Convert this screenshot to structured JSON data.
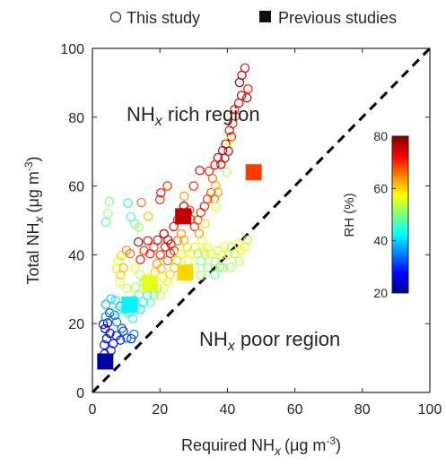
{
  "chart_data": {
    "type": "scatter",
    "xlabel": "Required NH",
    "xlabel_sub": "x",
    "xlabel_unit": "(μg m",
    "xlabel_exp": "-3",
    "xlabel_close": ")",
    "ylabel": "Total NH",
    "ylabel_sub": "x",
    "ylabel_unit": "(μg m",
    "ylabel_exp": "-3",
    "ylabel_close": ")",
    "xlim": [
      0,
      100
    ],
    "ylim": [
      0,
      100
    ],
    "xticks": [
      0,
      20,
      40,
      60,
      80,
      100
    ],
    "yticks": [
      0,
      20,
      40,
      60,
      80,
      100
    ],
    "grid": false,
    "legend_position": "top",
    "legend": [
      {
        "label": "This study",
        "marker": "open-circle"
      },
      {
        "label": "Previous studies",
        "marker": "filled-square"
      }
    ],
    "annotations": {
      "rich_main": "NH",
      "rich_sub": "x",
      "rich_rest": " rich region",
      "poor_main": "NH",
      "poor_sub": "x",
      "poor_rest": " poor region"
    },
    "reference_line": {
      "style": "dashed",
      "from": [
        0,
        0
      ],
      "to": [
        100,
        100
      ]
    },
    "colorbar": {
      "label": "RH (%)",
      "range": [
        20,
        80
      ],
      "ticks": [
        20,
        40,
        60,
        80
      ],
      "colormap": "jet"
    },
    "series": [
      {
        "name": "This study",
        "marker": "open-circle",
        "points": [
          [
            3.2,
            19.8,
            28
          ],
          [
            4.5,
            20.2,
            26
          ],
          [
            3.8,
            18.5,
            24
          ],
          [
            5.2,
            17.2,
            27
          ],
          [
            4.2,
            15.6,
            25
          ],
          [
            3.5,
            13.8,
            29
          ],
          [
            5.5,
            12.2,
            30
          ],
          [
            3.6,
            11.2,
            22
          ],
          [
            4.1,
            9.6,
            21
          ],
          [
            6.2,
            14.2,
            27
          ],
          [
            7.1,
            16.5,
            29
          ],
          [
            8.3,
            15.2,
            28
          ],
          [
            9.2,
            17.8,
            31
          ],
          [
            10.2,
            15.8,
            33
          ],
          [
            11.5,
            15.6,
            30
          ],
          [
            12.3,
            16.9,
            34
          ],
          [
            8.7,
            18.6,
            32
          ],
          [
            7.2,
            20.5,
            35
          ],
          [
            6.6,
            22.4,
            34
          ],
          [
            5.1,
            23.1,
            30
          ],
          [
            3.9,
            22.0,
            36
          ],
          [
            4.0,
            25.6,
            38
          ],
          [
            5.5,
            27.2,
            40
          ],
          [
            6.9,
            26.8,
            42
          ],
          [
            8.2,
            25.0,
            39
          ],
          [
            7.4,
            23.8,
            44
          ],
          [
            9.8,
            24.1,
            46
          ],
          [
            10.6,
            23.1,
            42
          ],
          [
            11.9,
            21.5,
            44
          ],
          [
            13.2,
            24.6,
            48
          ],
          [
            12.3,
            26.8,
            46
          ],
          [
            13.8,
            28.3,
            50
          ],
          [
            12.8,
            30.6,
            52
          ],
          [
            10.2,
            30.2,
            54
          ],
          [
            8.1,
            32.2,
            56
          ],
          [
            7.2,
            35.9,
            58
          ],
          [
            8.3,
            34.2,
            60
          ],
          [
            9.2,
            36.2,
            62
          ],
          [
            7.6,
            38.3,
            56
          ],
          [
            8.6,
            39.8,
            60
          ],
          [
            10.1,
            41.3,
            64
          ],
          [
            11.2,
            40.3,
            66
          ],
          [
            12.6,
            36.1,
            58
          ],
          [
            14.1,
            34.3,
            54
          ],
          [
            15.3,
            32.1,
            50
          ],
          [
            16.5,
            33.3,
            56
          ],
          [
            17.3,
            31.3,
            48
          ],
          [
            18.6,
            35.0,
            60
          ],
          [
            19.1,
            37.4,
            64
          ],
          [
            20.4,
            36.0,
            62
          ],
          [
            21.1,
            33.3,
            58
          ],
          [
            22.3,
            38.3,
            66
          ],
          [
            23.1,
            40.4,
            70
          ],
          [
            21.6,
            42.3,
            72
          ],
          [
            20.1,
            40.0,
            70
          ],
          [
            18.2,
            42.2,
            68
          ],
          [
            17.1,
            40.3,
            72
          ],
          [
            16.4,
            44.1,
            74
          ],
          [
            15.3,
            41.2,
            70
          ],
          [
            14.2,
            38.6,
            72
          ],
          [
            13.6,
            43.7,
            76
          ],
          [
            19.3,
            44.3,
            74
          ],
          [
            21.2,
            46.1,
            78
          ],
          [
            22.4,
            44.3,
            76
          ],
          [
            23.3,
            43.1,
            74
          ],
          [
            24.2,
            41.2,
            70
          ],
          [
            25.2,
            44.1,
            66
          ],
          [
            26.3,
            46.1,
            64
          ],
          [
            27.1,
            44.3,
            62
          ],
          [
            28.2,
            42.1,
            60
          ],
          [
            29.1,
            40.3,
            58
          ],
          [
            30.3,
            42.2,
            56
          ],
          [
            31.2,
            40.4,
            52
          ],
          [
            32.1,
            38.3,
            50
          ],
          [
            33.4,
            40.1,
            54
          ],
          [
            34.2,
            42.1,
            58
          ],
          [
            35.2,
            40.3,
            56
          ],
          [
            36.3,
            38.0,
            52
          ],
          [
            37.1,
            41.2,
            54
          ],
          [
            38.2,
            40.0,
            56
          ],
          [
            39.1,
            42.3,
            58
          ],
          [
            40.3,
            40.1,
            56
          ],
          [
            41.2,
            42.2,
            54
          ],
          [
            42.1,
            40.3,
            52
          ],
          [
            43.2,
            43.1,
            56
          ],
          [
            44.1,
            41.3,
            58
          ],
          [
            45.2,
            42.2,
            56
          ],
          [
            46.1,
            44.3,
            54
          ],
          [
            43.6,
            38.1,
            54
          ],
          [
            41.1,
            36.3,
            52
          ],
          [
            38.6,
            36.1,
            50
          ],
          [
            36.3,
            34.2,
            48
          ],
          [
            34.1,
            36.3,
            50
          ],
          [
            32.2,
            34.0,
            52
          ],
          [
            30.2,
            36.1,
            54
          ],
          [
            28.3,
            38.3,
            56
          ],
          [
            26.2,
            40.1,
            58
          ],
          [
            25.1,
            38.4,
            60
          ],
          [
            24.3,
            36.2,
            62
          ],
          [
            23.0,
            34.3,
            60
          ],
          [
            22.3,
            32.1,
            58
          ],
          [
            21.2,
            30.3,
            56
          ],
          [
            20.1,
            28.2,
            54
          ],
          [
            19.2,
            30.1,
            52
          ],
          [
            18.1,
            28.3,
            50
          ],
          [
            17.2,
            26.1,
            48
          ],
          [
            16.3,
            28.2,
            46
          ],
          [
            15.1,
            26.3,
            44
          ],
          [
            14.2,
            24.1,
            42
          ],
          [
            24.1,
            48.2,
            72
          ],
          [
            25.3,
            50.1,
            74
          ],
          [
            26.2,
            52.3,
            76
          ],
          [
            27.1,
            54.1,
            78
          ],
          [
            28.2,
            52.2,
            76
          ],
          [
            29.1,
            50.3,
            72
          ],
          [
            30.3,
            48.2,
            70
          ],
          [
            31.2,
            50.1,
            68
          ],
          [
            32.1,
            52.3,
            70
          ],
          [
            33.2,
            54.1,
            72
          ],
          [
            34.1,
            56.2,
            70
          ],
          [
            35.2,
            58.1,
            68
          ],
          [
            36.1,
            56.3,
            66
          ],
          [
            37.2,
            58.2,
            64
          ],
          [
            36.5,
            60.1,
            62
          ],
          [
            35.6,
            62.2,
            66
          ],
          [
            34.6,
            64.3,
            70
          ],
          [
            36.3,
            66.1,
            72
          ],
          [
            37.2,
            68.2,
            74
          ],
          [
            38.1,
            66.3,
            76
          ],
          [
            39.2,
            68.1,
            74
          ],
          [
            38.6,
            70.3,
            76
          ],
          [
            39.5,
            72.2,
            78
          ],
          [
            40.3,
            70.1,
            76
          ],
          [
            41.2,
            74.3,
            72
          ],
          [
            40.6,
            76.2,
            74
          ],
          [
            41.6,
            78.1,
            70
          ],
          [
            42.3,
            80.3,
            68
          ],
          [
            42.1,
            82.2,
            72
          ],
          [
            43.4,
            84.1,
            74
          ],
          [
            44.2,
            86.3,
            76
          ],
          [
            43.6,
            90.1,
            78
          ],
          [
            44.3,
            92.2,
            76
          ],
          [
            45.2,
            94.3,
            74
          ],
          [
            46.1,
            88.2,
            72
          ],
          [
            45.8,
            85.6,
            76
          ],
          [
            40.6,
            73.0,
            56
          ],
          [
            39.8,
            64.0,
            52
          ],
          [
            36.5,
            54.0,
            56
          ],
          [
            33.4,
            49.0,
            60
          ],
          [
            31.6,
            46.2,
            64
          ],
          [
            28.8,
            53.0,
            68
          ],
          [
            27.2,
            57.0,
            64
          ],
          [
            30.0,
            60.0,
            70
          ],
          [
            31.8,
            64.5,
            74
          ],
          [
            20.3,
            58.0,
            72
          ],
          [
            20.0,
            56.0,
            70
          ],
          [
            14.5,
            55.2,
            66
          ],
          [
            12.6,
            49.0,
            48
          ],
          [
            13.8,
            48.0,
            52
          ],
          [
            5.0,
            55.5,
            50
          ],
          [
            4.6,
            52.0,
            52
          ],
          [
            4.0,
            49.5,
            48
          ],
          [
            10.5,
            55.0,
            44
          ],
          [
            11.4,
            51.0,
            46
          ],
          [
            16.5,
            51.2,
            62
          ],
          [
            22.2,
            60.0,
            70
          ],
          [
            32.5,
            44.3,
            56
          ],
          [
            33.0,
            41.0,
            54
          ],
          [
            37.8,
            36.5,
            52
          ]
        ]
      },
      {
        "name": "Previous studies",
        "marker": "filled-square",
        "points": [
          [
            3.8,
            9.0,
            22
          ],
          [
            11.0,
            25.5,
            42
          ],
          [
            17.0,
            31.7,
            56
          ],
          [
            27.5,
            34.8,
            60
          ],
          [
            26.9,
            51.2,
            76
          ],
          [
            47.8,
            64.0,
            69
          ]
        ]
      }
    ]
  }
}
